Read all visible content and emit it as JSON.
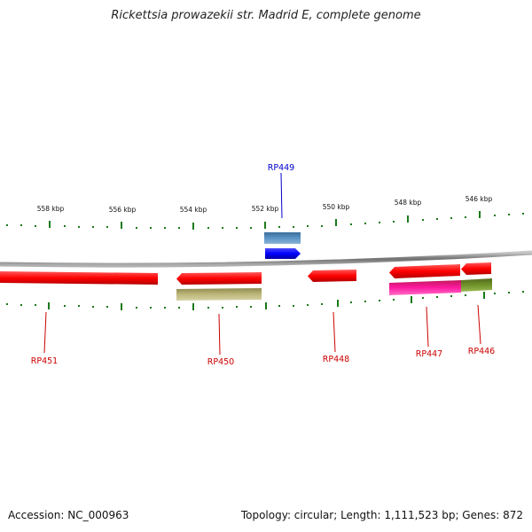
{
  "title": "Rickettsia prowazekii str. Madrid E, complete genome",
  "footer": {
    "accession": "Accession: NC_000963",
    "summary": "Topology: circular; Length: 1,111,523 bp; Genes: 872"
  },
  "scale_labels": [
    "558 kbp",
    "556 kbp",
    "554 kbp",
    "552 kbp",
    "550 kbp",
    "548 kbp",
    "546 kbp"
  ],
  "genes": [
    {
      "label": "RP449",
      "color": "#0000cc",
      "strand": "forward"
    },
    {
      "label": "RP451",
      "color": "#cc0000",
      "strand": "reverse"
    },
    {
      "label": "RP450",
      "color": "#cc0000",
      "strand": "reverse"
    },
    {
      "label": "RP448",
      "color": "#cc0000",
      "strand": "reverse"
    },
    {
      "label": "RP447",
      "color": "#cc0000",
      "strand": "reverse"
    },
    {
      "label": "RP446",
      "color": "#cc0000",
      "strand": "reverse"
    }
  ],
  "colors": {
    "reverse_cds": "#ff0000",
    "forward_cds": "#0000ff",
    "steelblue_feature": "#4f86b8",
    "khaki_feature": "#b3ad6e",
    "magenta_feature": "#ff1493",
    "olive_feature": "#6b8e23",
    "backbone": "#808080",
    "ticks": "#1a7a1a"
  }
}
